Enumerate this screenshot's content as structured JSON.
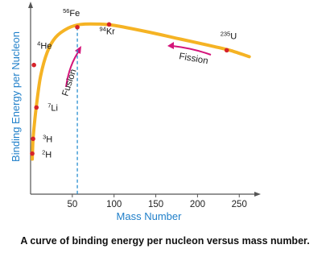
{
  "chart_data": {
    "type": "line",
    "xlabel": "Mass Number",
    "ylabel": "Binding Energy per Nucleon",
    "caption": "A curve of binding energy per nucleon versus mass number.",
    "xlim": [
      0,
      270
    ],
    "ylim": [
      0,
      10
    ],
    "xticks": [
      50,
      100,
      150,
      200,
      250
    ],
    "curve": {
      "color": "#f5b324",
      "x": [
        2,
        3,
        5,
        7,
        12,
        20,
        30,
        45,
        60,
        80,
        100,
        140,
        180,
        220,
        240,
        262
      ],
      "values": [
        1.9,
        3.0,
        4.0,
        4.8,
        6.4,
        7.7,
        8.5,
        9.0,
        9.2,
        9.22,
        9.15,
        8.8,
        8.4,
        8.0,
        7.78,
        7.45
      ]
    },
    "points": {
      "color": "#d6232a",
      "x": [
        2,
        3,
        4,
        7,
        56,
        94,
        235
      ],
      "values": [
        2.2,
        3.0,
        7.0,
        4.7,
        9.05,
        9.2,
        7.8
      ],
      "symbols": [
        "H",
        "H",
        "He",
        "Li",
        "Fe",
        "Kr",
        "U"
      ]
    },
    "marker_line": {
      "x": 56,
      "color": "#2a8fd0"
    },
    "annotations": [
      "Fusion",
      "Fission"
    ],
    "arrow_color": "#d4157a",
    "label_color": "#1f7fc9"
  }
}
